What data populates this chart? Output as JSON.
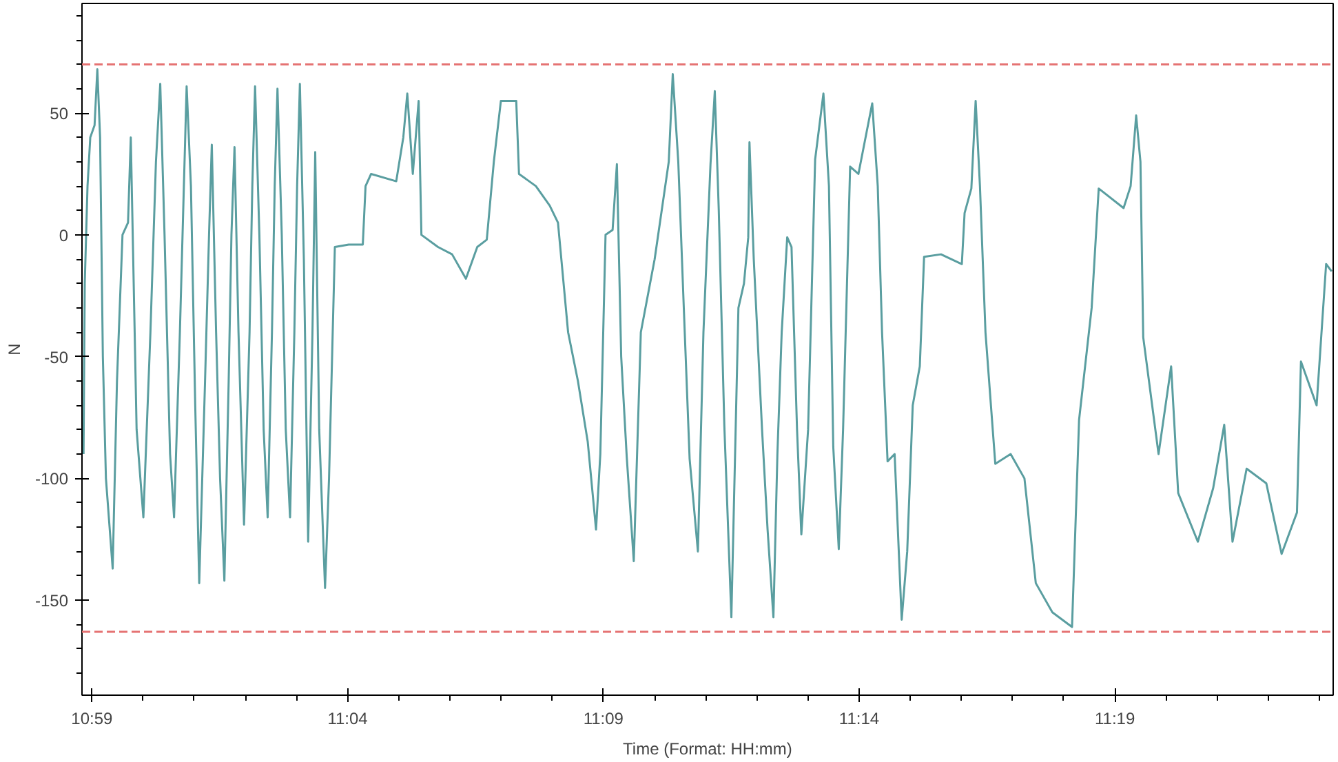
{
  "chart_data": {
    "type": "line",
    "xlabel": "Time (Format: HH:mm)",
    "ylabel": "N",
    "xlim": [
      10.9801,
      11.3878
    ],
    "ylim": [
      -189,
      95
    ],
    "xticks": [
      {
        "value": 10.98333,
        "label": "10:59"
      },
      {
        "value": 11.0,
        "label": null
      },
      {
        "value": 11.01667,
        "label": null
      },
      {
        "value": 11.03333,
        "label": null
      },
      {
        "value": 11.05,
        "label": null
      },
      {
        "value": 11.06667,
        "label": "11:04"
      },
      {
        "value": 11.08333,
        "label": null
      },
      {
        "value": 11.1,
        "label": null
      },
      {
        "value": 11.11667,
        "label": null
      },
      {
        "value": 11.13333,
        "label": null
      },
      {
        "value": 11.15,
        "label": "11:09"
      },
      {
        "value": 11.16667,
        "label": null
      },
      {
        "value": 11.18333,
        "label": null
      },
      {
        "value": 11.2,
        "label": null
      },
      {
        "value": 11.21667,
        "label": null
      },
      {
        "value": 11.23333,
        "label": "11:14"
      },
      {
        "value": 11.25,
        "label": null
      },
      {
        "value": 11.26667,
        "label": null
      },
      {
        "value": 11.28333,
        "label": null
      },
      {
        "value": 11.3,
        "label": null
      },
      {
        "value": 11.31667,
        "label": "11:19"
      },
      {
        "value": 11.33333,
        "label": null
      },
      {
        "value": 11.35,
        "label": null
      },
      {
        "value": 11.36667,
        "label": null
      },
      {
        "value": 11.38333,
        "label": null
      }
    ],
    "yticks": [
      {
        "value": 90,
        "label": null
      },
      {
        "value": 80,
        "label": null
      },
      {
        "value": 70,
        "label": null
      },
      {
        "value": 60,
        "label": null
      },
      50,
      {
        "value": 40,
        "label": null
      },
      {
        "value": 30,
        "label": null
      },
      {
        "value": 20,
        "label": null
      },
      {
        "value": 10,
        "label": null
      },
      0,
      {
        "value": -10,
        "label": null
      },
      {
        "value": -20,
        "label": null
      },
      {
        "value": -30,
        "label": null
      },
      {
        "value": -40,
        "label": null
      },
      -50,
      {
        "value": -60,
        "label": null
      },
      {
        "value": -70,
        "label": null
      },
      {
        "value": -80,
        "label": null
      },
      {
        "value": -90,
        "label": null
      },
      -100,
      {
        "value": -110,
        "label": null
      },
      {
        "value": -120,
        "label": null
      },
      {
        "value": -130,
        "label": null
      },
      {
        "value": -140,
        "label": null
      },
      -150,
      {
        "value": -160,
        "label": null
      },
      {
        "value": -170,
        "label": null
      },
      {
        "value": -180,
        "label": null
      }
    ],
    "grid": false,
    "marker": "none",
    "line_style": "solid",
    "ref_lines": [
      {
        "axis": "y",
        "value": 70,
        "color": "#e57373",
        "line_style": "dashed"
      },
      {
        "axis": "y",
        "value": -163,
        "color": "#e57373",
        "line_style": "dashed"
      }
    ],
    "series": [
      {
        "color": "#5a9ea0",
        "x": [
          10.9806,
          10.981,
          10.9819,
          10.9828,
          10.9842,
          10.9851,
          10.986,
          10.9869,
          10.9879,
          10.9901,
          10.9915,
          10.9933,
          10.9951,
          10.996,
          10.9979,
          11.0001,
          11.0024,
          11.0042,
          11.0056,
          11.007,
          11.0088,
          11.0101,
          11.012,
          11.0133,
          11.0142,
          11.0156,
          11.017,
          11.0183,
          11.0202,
          11.0215,
          11.0224,
          11.0238,
          11.0251,
          11.0265,
          11.0279,
          11.0288,
          11.0298,
          11.0311,
          11.0329,
          11.0347,
          11.0356,
          11.0365,
          11.0379,
          11.0393,
          11.0406,
          11.042,
          11.0429,
          11.0438,
          11.0452,
          11.0465,
          11.0479,
          11.0493,
          11.0502,
          11.0511,
          11.0524,
          11.0538,
          11.0552,
          11.0561,
          11.0574,
          11.0593,
          11.0606,
          11.0625,
          11.067,
          11.0716,
          11.0725,
          11.0743,
          11.0825,
          11.0848,
          11.0861,
          11.0879,
          11.0898,
          11.0907,
          11.0961,
          11.1007,
          11.1052,
          11.1089,
          11.112,
          11.1143,
          11.1166,
          11.1216,
          11.1225,
          11.128,
          11.1325,
          11.1352,
          11.1385,
          11.1417,
          11.1449,
          11.1476,
          11.149,
          11.1507,
          11.153,
          11.1544,
          11.1558,
          11.1576,
          11.1599,
          11.1622,
          11.1667,
          11.1713,
          11.1726,
          11.1744,
          11.1762,
          11.1781,
          11.1808,
          11.1826,
          11.1849,
          11.1863,
          11.1876,
          11.1894,
          11.1917,
          11.194,
          11.1958,
          11.1972,
          11.1976,
          11.199,
          11.2017,
          11.2035,
          11.2054,
          11.2067,
          11.2081,
          11.2099,
          11.2113,
          11.2131,
          11.2145,
          11.2167,
          11.219,
          11.2217,
          11.2235,
          11.2249,
          11.2267,
          11.2281,
          11.2304,
          11.2331,
          11.2376,
          11.2394,
          11.2408,
          11.2426,
          11.2449,
          11.2472,
          11.249,
          11.2508,
          11.2531,
          11.2545,
          11.26,
          11.2668,
          11.2677,
          11.2699,
          11.2713,
          11.2727,
          11.2745,
          11.2777,
          11.2827,
          11.2872,
          11.2909,
          11.2963,
          11.3027,
          11.305,
          11.3091,
          11.3114,
          11.3195,
          11.3218,
          11.3236,
          11.325,
          11.3259,
          11.3309,
          11.335,
          11.3373,
          11.3437,
          11.3487,
          11.3523,
          11.355,
          11.3596,
          11.366,
          11.371,
          11.376,
          11.3773,
          11.3824,
          11.3855,
          11.3873
        ],
        "values": [
          -90,
          -20,
          20,
          40,
          45,
          68,
          40,
          -50,
          -100,
          -137,
          -60,
          0,
          5,
          40,
          -80,
          -116,
          -40,
          30,
          62,
          0,
          -90,
          -116,
          -40,
          20,
          61,
          20,
          -70,
          -143,
          -60,
          0,
          37,
          -40,
          -100,
          -142,
          -60,
          0,
          36,
          -40,
          -119,
          -40,
          20,
          61,
          0,
          -80,
          -116,
          -40,
          20,
          60,
          0,
          -80,
          -116,
          -40,
          20,
          62,
          -10,
          -126,
          -40,
          34,
          -80,
          -145,
          -100,
          -5,
          -4,
          -4,
          20,
          25,
          22,
          40,
          58,
          25,
          55,
          0,
          -5,
          -8,
          -18,
          -5,
          -2,
          30,
          55,
          55,
          25,
          20,
          12,
          5,
          -40,
          -60,
          -85,
          -121,
          -90,
          0,
          2,
          29,
          -50,
          -91,
          -134,
          -40,
          -10,
          30,
          66,
          30,
          -30,
          -92,
          -130,
          -40,
          29,
          59,
          10,
          -78,
          -157,
          -30,
          -20,
          -1,
          38,
          -10,
          -80,
          -121,
          -157,
          -90,
          -40,
          -1,
          -5,
          -80,
          -123,
          -80,
          31,
          58,
          20,
          -87,
          -129,
          -80,
          28,
          25,
          54,
          20,
          -40,
          -93,
          -90,
          -158,
          -130,
          -70,
          -54,
          -9,
          -8,
          -12,
          9,
          19,
          55,
          20,
          -40,
          -94,
          -90,
          -100,
          -143,
          -155,
          -161,
          -76,
          -30,
          19,
          11,
          20,
          49,
          30,
          -42,
          -90,
          -54,
          -106,
          -126,
          -104,
          -78,
          -126,
          -96,
          -102,
          -131,
          -114,
          -52,
          -70,
          -12,
          -15
        ]
      }
    ]
  }
}
